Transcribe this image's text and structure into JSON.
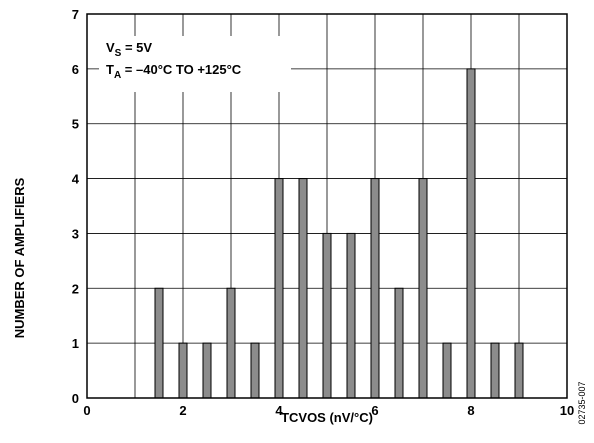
{
  "chart_data": {
    "type": "bar",
    "xlabel": "TCVOS (nV/°C)",
    "ylabel": "NUMBER OF AMPLIFIERS",
    "xlim": [
      0,
      10
    ],
    "ylim": [
      0,
      7
    ],
    "xticks": [
      0,
      2,
      4,
      6,
      8,
      10
    ],
    "yticks": [
      0,
      1,
      2,
      3,
      4,
      5,
      6,
      7
    ],
    "grid": true,
    "bar_color": "#8c8c8c",
    "x": [
      1.5,
      2.0,
      2.5,
      3.0,
      3.5,
      4.0,
      4.5,
      5.0,
      5.5,
      6.0,
      6.5,
      7.0,
      7.5,
      8.0,
      8.5,
      9.0
    ],
    "values": [
      2,
      1,
      1,
      2,
      1,
      4,
      4,
      3,
      3,
      4,
      2,
      4,
      1,
      6,
      1,
      1
    ],
    "annotation": {
      "line1_main": "V",
      "line1_sub": "S",
      "line1_rest": " = 5V",
      "line2_main": "T",
      "line2_sub": "A",
      "line2_rest": " = –40°C TO +125°C"
    },
    "figure_code": "02735-007"
  }
}
